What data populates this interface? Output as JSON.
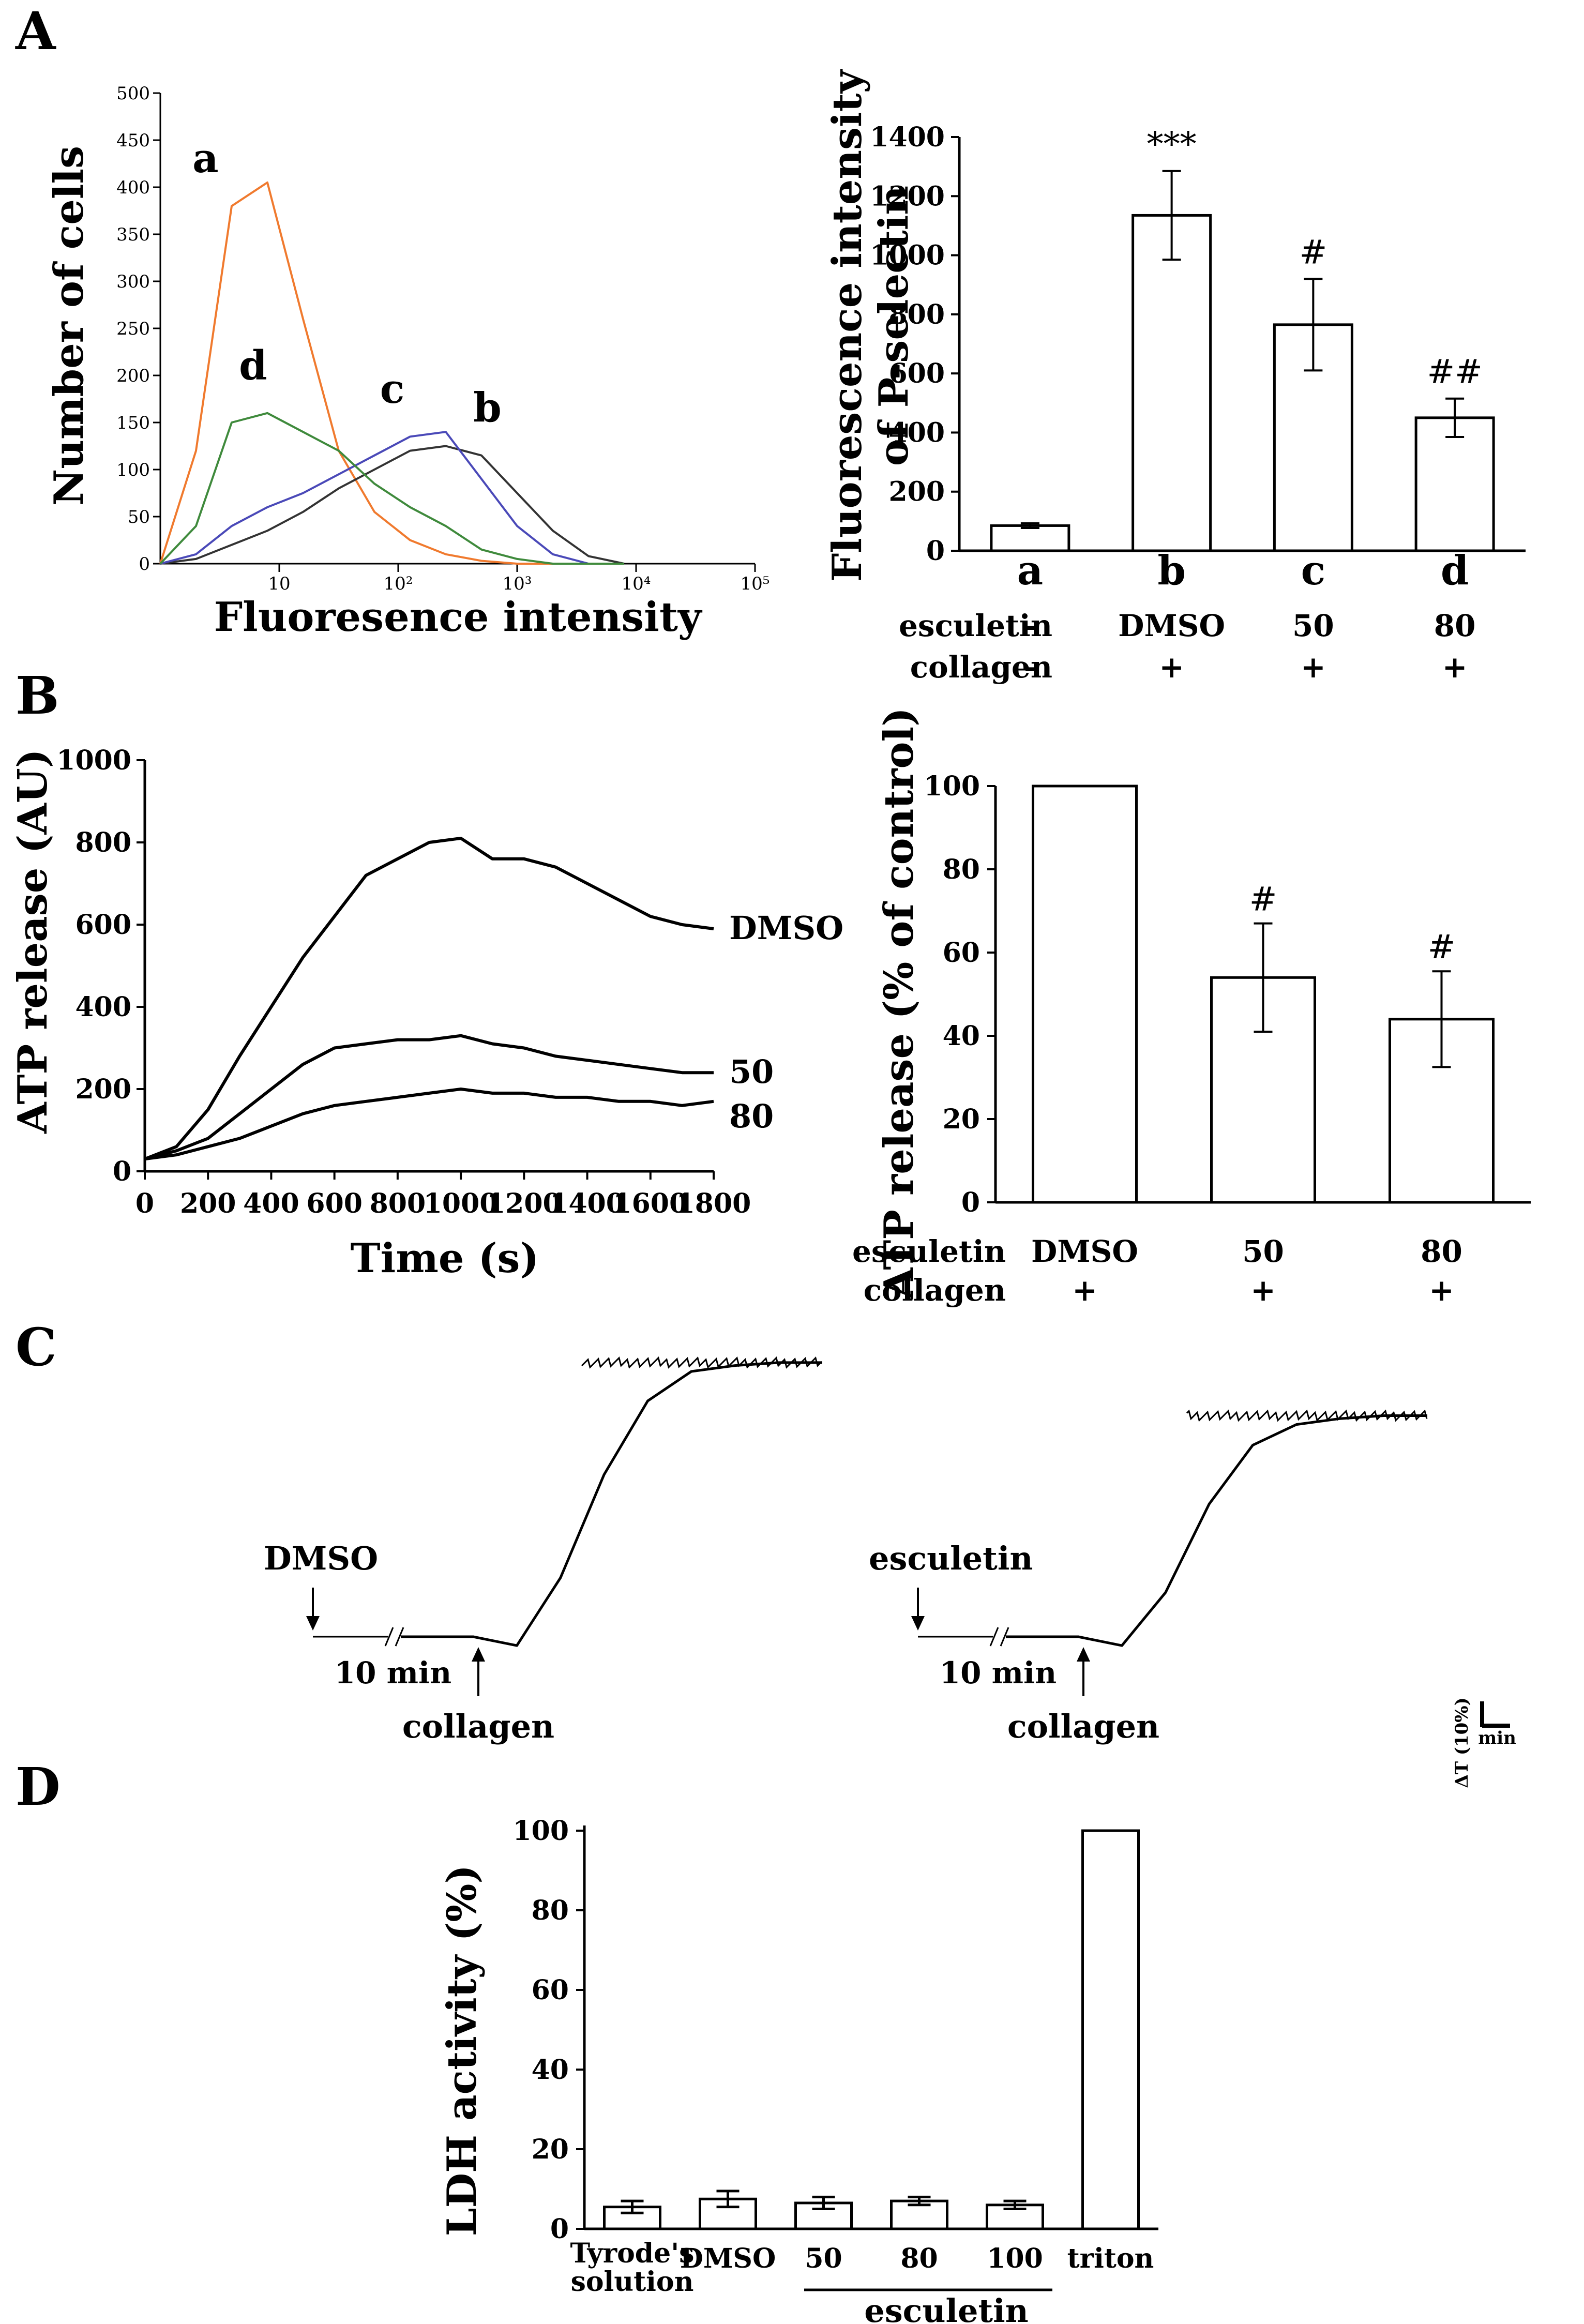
{
  "panels": {
    "A": {
      "letter": "A",
      "histogram": {
        "ylabel": "Number of cells",
        "xlabel": "Fluoresence intensity",
        "yticks": [
          "0",
          "50",
          "100",
          "150",
          "200",
          "250",
          "300",
          "350",
          "400",
          "450",
          "500"
        ],
        "xticks": [
          "10",
          "10²",
          "10³",
          "10⁴",
          "10⁵"
        ],
        "curve_labels": [
          "a",
          "b",
          "c",
          "d"
        ],
        "colors": {
          "a": "#f07a2e",
          "b": "#333333",
          "c": "#4a49b8",
          "d": "#3f8a3c"
        }
      },
      "bar": {
        "ylabel_line1": "Fluorescence intensity",
        "ylabel_line2": "of P-selectin",
        "row_labels": [
          "esculetin",
          "collagen"
        ]
      }
    },
    "B": {
      "letter": "B",
      "line": {
        "ylabel": "ATP release (AU)",
        "xlabel": "Time (s)"
      },
      "bar": {
        "ylabel": "ATP release (% of control)",
        "row_labels": [
          "esculetin",
          "collagen"
        ]
      }
    },
    "C": {
      "letter": "C",
      "traces": [
        {
          "agent": "DMSO",
          "stim": "collagen",
          "time": "10 min"
        },
        {
          "agent": "esculetin",
          "stim": "collagen",
          "time": "10 min"
        }
      ],
      "scale": {
        "y": "ΔT (10%)",
        "x": "min"
      }
    },
    "D": {
      "letter": "D",
      "group_label": "esculetin"
    }
  },
  "chart_data": [
    {
      "id": "A-histogram",
      "type": "line",
      "title": "",
      "xlabel": "Fluoresence intensity",
      "ylabel": "Number of cells",
      "xscale": "log",
      "xlim": [
        1,
        100000
      ],
      "ylim": [
        0,
        500
      ],
      "x_decades": [
        0,
        0.3,
        0.6,
        0.9,
        1.2,
        1.5,
        1.8,
        2.1,
        2.4,
        2.7,
        3.0,
        3.3,
        3.6,
        3.9
      ],
      "series": [
        {
          "name": "a",
          "values": [
            0,
            120,
            380,
            405,
            260,
            120,
            55,
            25,
            10,
            3,
            0,
            0,
            0,
            0
          ]
        },
        {
          "name": "b",
          "values": [
            0,
            5,
            20,
            35,
            55,
            80,
            100,
            120,
            125,
            115,
            75,
            35,
            8,
            0
          ]
        },
        {
          "name": "c",
          "values": [
            0,
            10,
            40,
            60,
            75,
            95,
            115,
            135,
            140,
            90,
            40,
            10,
            0,
            0
          ]
        },
        {
          "name": "d",
          "values": [
            0,
            40,
            150,
            160,
            140,
            120,
            85,
            60,
            40,
            15,
            5,
            0,
            0,
            0
          ]
        }
      ]
    },
    {
      "id": "A-bar",
      "type": "bar",
      "title": "",
      "ylabel": "Fluorescence intensity of P-selectin",
      "ylim": [
        0,
        1400
      ],
      "yticks": [
        0,
        200,
        400,
        600,
        800,
        1000,
        1200,
        1400
      ],
      "categories": [
        "a",
        "b",
        "c",
        "d"
      ],
      "values": [
        85,
        1135,
        765,
        450
      ],
      "errors": [
        8,
        150,
        155,
        65
      ],
      "significance": [
        "",
        "***",
        "#",
        "##"
      ],
      "esculetin": [
        "-",
        "DMSO",
        "50",
        "80"
      ],
      "collagen": [
        "-",
        "+",
        "+",
        "+"
      ]
    },
    {
      "id": "B-line",
      "type": "line",
      "title": "",
      "xlabel": "Time (s)",
      "ylabel": "ATP release (AU)",
      "xlim": [
        0,
        1800
      ],
      "ylim": [
        0,
        1000
      ],
      "xticks": [
        0,
        200,
        400,
        600,
        800,
        1000,
        1200,
        1400,
        1600,
        1800
      ],
      "yticks": [
        0,
        200,
        400,
        600,
        800,
        1000
      ],
      "x": [
        0,
        100,
        200,
        300,
        400,
        500,
        600,
        700,
        800,
        900,
        1000,
        1100,
        1200,
        1300,
        1400,
        1500,
        1600,
        1700,
        1800
      ],
      "series": [
        {
          "name": "DMSO",
          "values": [
            30,
            60,
            150,
            280,
            400,
            520,
            620,
            720,
            760,
            800,
            810,
            760,
            760,
            740,
            700,
            660,
            620,
            600,
            590
          ]
        },
        {
          "name": "50",
          "values": [
            30,
            50,
            80,
            140,
            200,
            260,
            300,
            310,
            320,
            320,
            330,
            310,
            300,
            280,
            270,
            260,
            250,
            240,
            240
          ]
        },
        {
          "name": "80",
          "values": [
            30,
            40,
            60,
            80,
            110,
            140,
            160,
            170,
            180,
            190,
            200,
            190,
            190,
            180,
            180,
            170,
            170,
            160,
            170
          ]
        }
      ]
    },
    {
      "id": "B-bar",
      "type": "bar",
      "title": "",
      "ylabel": "ATP release (% of control)",
      "ylim": [
        0,
        100
      ],
      "yticks": [
        0,
        20,
        40,
        60,
        80,
        100
      ],
      "categories": [
        "DMSO",
        "50",
        "80"
      ],
      "values": [
        100,
        54,
        44
      ],
      "errors": [
        0,
        13,
        11.5
      ],
      "significance": [
        "",
        "#",
        "#"
      ],
      "collagen": [
        "+",
        "+",
        "+"
      ]
    },
    {
      "id": "C-traces",
      "type": "line",
      "title": "",
      "xlabel": "min",
      "ylabel": "ΔT (10%)",
      "series": [
        {
          "name": "DMSO",
          "values": [
            0,
            0,
            0,
            0,
            -3,
            20,
            55,
            80,
            90,
            92,
            93,
            93
          ]
        },
        {
          "name": "esculetin",
          "values": [
            0,
            0,
            0,
            0,
            -3,
            15,
            45,
            65,
            72,
            74,
            75,
            75
          ]
        }
      ]
    },
    {
      "id": "D-bar",
      "type": "bar",
      "title": "",
      "ylabel": "LDH activity (%)",
      "ylim": [
        0,
        100
      ],
      "yticks": [
        0,
        20,
        40,
        60,
        80,
        100
      ],
      "categories": [
        "Tyrode's solution",
        "DMSO",
        "50",
        "80",
        "100",
        "triton"
      ],
      "values": [
        5.5,
        7.5,
        6.5,
        7,
        6,
        100
      ],
      "errors": [
        1.5,
        2,
        1.5,
        1,
        1,
        0
      ]
    }
  ]
}
